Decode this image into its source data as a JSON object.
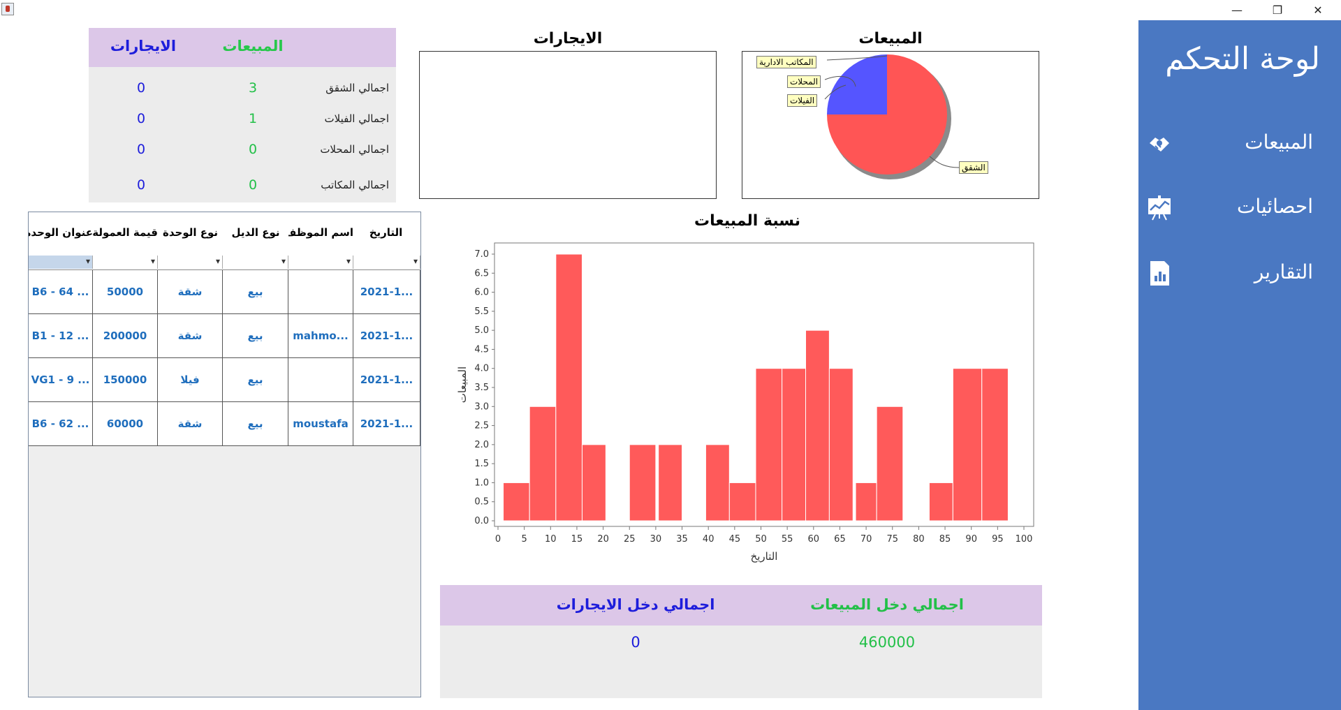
{
  "window": {
    "minimize_glyph": "—",
    "restore_glyph": "❐",
    "close_glyph": "✕"
  },
  "sidebar": {
    "title": "لوحة التحكم",
    "items": [
      {
        "label": "المبيعات",
        "icon": "handshake-icon"
      },
      {
        "label": "احصائيات",
        "icon": "presentation-chart-icon"
      },
      {
        "label": "التقارير",
        "icon": "report-document-icon"
      }
    ],
    "background_color": "#4a78c2"
  },
  "summary": {
    "sales_header": "المبيعات",
    "rent_header": "الايجارات",
    "rows": [
      {
        "label": "اجمالي الشقق",
        "sales": "3",
        "rent": "0"
      },
      {
        "label": "اجمالي الفيلات",
        "sales": "1",
        "rent": "0"
      },
      {
        "label": "اجمالي المحلات",
        "sales": "0",
        "rent": "0"
      },
      {
        "label": "اجمالي المكاتب",
        "sales": "0",
        "rent": "0"
      }
    ],
    "sales_color": "#22c048",
    "rent_color": "#1d1ddb"
  },
  "pie_sales": {
    "title": "المبيعات",
    "callouts": [
      "المكاتب الادارية",
      "المحلات",
      "الفيلات",
      "الشقق"
    ]
  },
  "pie_rent": {
    "title": "الايجارات"
  },
  "chart_data": {
    "type": "bar",
    "title": "نسبة المبيعات",
    "xlabel": "التاريخ",
    "ylabel": "المبيعات",
    "xlim": [
      0,
      100
    ],
    "ylim": [
      0,
      7.0
    ],
    "xticks": [
      "0",
      "5",
      "10",
      "15",
      "20",
      "25",
      "30",
      "35",
      "40",
      "45",
      "50",
      "55",
      "60",
      "65",
      "70",
      "75",
      "80",
      "85",
      "90",
      "95",
      "100"
    ],
    "yticks": [
      "0.0",
      "0.5",
      "1.0",
      "1.5",
      "2.0",
      "2.5",
      "3.0",
      "3.5",
      "4.0",
      "4.5",
      "5.0",
      "5.5",
      "6.0",
      "6.5",
      "7.0"
    ],
    "grid": false,
    "color": "#ff5a5a",
    "bars": [
      {
        "x0": 1,
        "x1": 6,
        "y": 1
      },
      {
        "x0": 6,
        "x1": 11,
        "y": 3
      },
      {
        "x0": 11,
        "x1": 16,
        "y": 7
      },
      {
        "x0": 16,
        "x1": 20.5,
        "y": 2
      },
      {
        "x0": 25,
        "x1": 30,
        "y": 2
      },
      {
        "x0": 30.5,
        "x1": 35,
        "y": 2
      },
      {
        "x0": 39.5,
        "x1": 44,
        "y": 2
      },
      {
        "x0": 44,
        "x1": 49,
        "y": 1
      },
      {
        "x0": 49,
        "x1": 54,
        "y": 4
      },
      {
        "x0": 54,
        "x1": 58.5,
        "y": 4
      },
      {
        "x0": 58.5,
        "x1": 63,
        "y": 5
      },
      {
        "x0": 63,
        "x1": 67.5,
        "y": 4
      },
      {
        "x0": 68,
        "x1": 72,
        "y": 1
      },
      {
        "x0": 72,
        "x1": 77,
        "y": 3
      },
      {
        "x0": 82,
        "x1": 86.5,
        "y": 1
      },
      {
        "x0": 86.5,
        "x1": 92,
        "y": 4
      },
      {
        "x0": 92,
        "x1": 97,
        "y": 4
      }
    ]
  },
  "table": {
    "columns": [
      "عنوان الوحدة",
      "قيمة العمولة",
      "نوع الوحدة",
      "نوع الديل",
      "اسم الموظف",
      "التاريخ"
    ],
    "rows": [
      [
        "B6 - 64 ...",
        "50000",
        "شقة",
        "بيع",
        "",
        "2021-1..."
      ],
      [
        "B1 - 12 ...",
        "200000",
        "شقة",
        "بيع",
        "mahmo...",
        "2021-1..."
      ],
      [
        "VG1 - 9 ...",
        "150000",
        "فيلا",
        "بيع",
        "",
        "2021-1..."
      ],
      [
        "B6 - 62 ...",
        "60000",
        "شقة",
        "بيع",
        "moustafa",
        "2021-1..."
      ]
    ]
  },
  "totals": {
    "sales_label": "اجمالي دخل المبيعات",
    "rent_label": "اجمالي دخل الايجارات",
    "sales_value": "460000",
    "rent_value": "0"
  }
}
